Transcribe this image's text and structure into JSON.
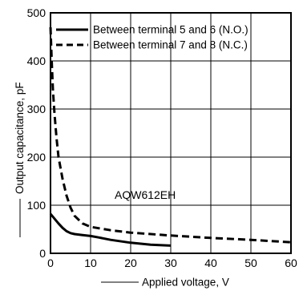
{
  "chart_data": {
    "type": "line",
    "xlabel": "Applied voltage, V",
    "ylabel": "Output capacitance, pF",
    "xlim": [
      0,
      60
    ],
    "ylim": [
      0,
      500
    ],
    "x_ticks": [
      0,
      10,
      20,
      30,
      40,
      50,
      60
    ],
    "y_ticks": [
      0,
      100,
      200,
      300,
      400,
      500
    ],
    "grid": true,
    "legend_position": "top-right",
    "annotation": "AQW612EH",
    "series": [
      {
        "name": "Between terminal 5 and 6 (N.O.)",
        "style": "solid",
        "color": "#000000",
        "x": [
          0,
          1,
          2,
          3,
          4,
          5,
          6,
          8,
          10,
          12,
          15,
          20,
          25,
          30
        ],
        "y": [
          82,
          72,
          62,
          53,
          46,
          42,
          40,
          38,
          36,
          33,
          28,
          22,
          18,
          16
        ]
      },
      {
        "name": "Between terminal 7 and 8 (N.C.)",
        "style": "dashed",
        "color": "#000000",
        "x": [
          0,
          0.3,
          0.6,
          1,
          1.5,
          2,
          3,
          4,
          5,
          6,
          8,
          10,
          15,
          20,
          30,
          40,
          50,
          60
        ],
        "y": [
          470,
          400,
          340,
          290,
          240,
          200,
          155,
          120,
          95,
          78,
          62,
          55,
          48,
          43,
          37,
          32,
          28,
          23
        ]
      }
    ]
  }
}
